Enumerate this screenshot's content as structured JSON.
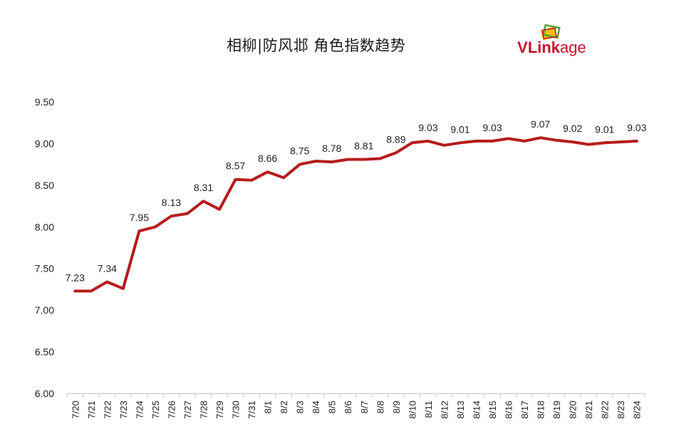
{
  "title": "相柳|防风邶  角色指数趋势",
  "logo": {
    "text_v": "V",
    "text_link": "Link",
    "text_age": "age",
    "color_red": "#c8102e",
    "color_green": "#5a9e3c",
    "color_yellow": "#f2c200"
  },
  "colors": {
    "line": "#b71c1c",
    "axis": "#bfbfbf",
    "text": "#222222"
  },
  "chart_data": {
    "type": "line",
    "title": "相柳|防风邶  角色指数趋势",
    "xlabel": "",
    "ylabel": "",
    "ylim": [
      6.0,
      9.5
    ],
    "yticks": [
      "6.00",
      "6.50",
      "7.00",
      "7.50",
      "8.00",
      "8.50",
      "9.00",
      "9.50"
    ],
    "grid": false,
    "categories": [
      "7/20",
      "7/21",
      "7/22",
      "7/23",
      "7/24",
      "7/25",
      "7/26",
      "7/27",
      "7/28",
      "7/29",
      "7/30",
      "7/31",
      "8/1",
      "8/2",
      "8/3",
      "8/4",
      "8/5",
      "8/6",
      "8/7",
      "8/8",
      "8/9",
      "8/10",
      "8/11",
      "8/12",
      "8/13",
      "8/14",
      "8/15",
      "8/16",
      "8/17",
      "8/18",
      "8/19",
      "8/20",
      "8/21",
      "8/22",
      "8/23",
      "8/24"
    ],
    "series": [
      {
        "values": [
          7.23,
          7.23,
          7.34,
          7.26,
          7.95,
          8.0,
          8.13,
          8.16,
          8.31,
          8.21,
          8.57,
          8.56,
          8.66,
          8.59,
          8.75,
          8.79,
          8.78,
          8.81,
          8.81,
          8.82,
          8.89,
          9.01,
          9.03,
          8.98,
          9.01,
          9.03,
          9.03,
          9.06,
          9.03,
          9.07,
          9.04,
          9.02,
          8.99,
          9.01,
          9.02,
          9.03
        ]
      }
    ],
    "data_labels": [
      {
        "category": "7/20",
        "text": "7.23"
      },
      {
        "category": "7/22",
        "text": "7.34"
      },
      {
        "category": "7/24",
        "text": "7.95"
      },
      {
        "category": "7/26",
        "text": "8.13"
      },
      {
        "category": "7/28",
        "text": "8.31"
      },
      {
        "category": "7/30",
        "text": "8.57"
      },
      {
        "category": "8/1",
        "text": "8.66"
      },
      {
        "category": "8/3",
        "text": "8.75"
      },
      {
        "category": "8/5",
        "text": "8.78"
      },
      {
        "category": "8/7",
        "text": "8.81"
      },
      {
        "category": "8/9",
        "text": "8.89"
      },
      {
        "category": "8/11",
        "text": "9.03"
      },
      {
        "category": "8/13",
        "text": "9.01"
      },
      {
        "category": "8/15",
        "text": "9.03"
      },
      {
        "category": "8/18",
        "text": "9.07"
      },
      {
        "category": "8/20",
        "text": "9.02"
      },
      {
        "category": "8/22",
        "text": "9.01"
      },
      {
        "category": "8/24",
        "text": "9.03"
      }
    ]
  }
}
